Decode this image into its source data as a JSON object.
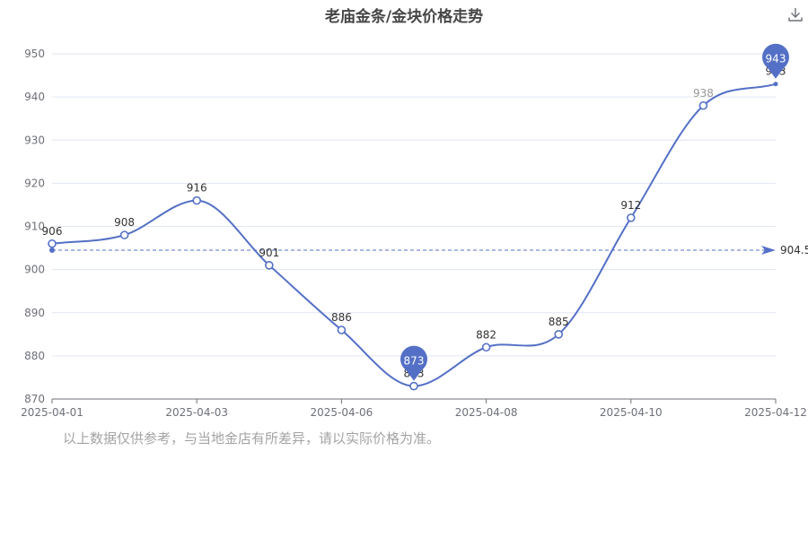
{
  "title": "老庙金条/金块价格走势",
  "download_icon": "download-icon",
  "footnote": "以上数据仅供参考，与当地金店有所差异，请以实际价格为准。",
  "colors": {
    "line": "#5470c6",
    "grid": "#e0e6f1",
    "axis": "#6e7079",
    "label": "#333333",
    "faded_label": "#999999",
    "footnote": "#a3a3a3"
  },
  "chart_data": {
    "type": "line",
    "title": "老庙金条/金块价格走势",
    "x_tick_labels": [
      "2025-04-01",
      "2025-04-03",
      "2025-04-06",
      "2025-04-08",
      "2025-04-10",
      "2025-04-12"
    ],
    "x_tick_indices": [
      0,
      2,
      4,
      6,
      8,
      10
    ],
    "y_ticks": [
      870,
      880,
      890,
      900,
      910,
      920,
      930,
      940,
      950
    ],
    "ylim": [
      870,
      950
    ],
    "series": [
      {
        "values": [
          906,
          908,
          916,
          901,
          886,
          873,
          882,
          885,
          912,
          938,
          943
        ],
        "labels": [
          "906",
          "908",
          "916",
          "901",
          "886",
          "873",
          "882",
          "885",
          "912",
          "938",
          "943"
        ]
      }
    ],
    "mark_points": [
      {
        "type": "min",
        "index": 5,
        "value": 873,
        "label": "873"
      },
      {
        "type": "max",
        "index": 10,
        "value": 943,
        "label": "943"
      }
    ],
    "mark_line": {
      "type": "average",
      "value": 904.5,
      "label": "904.5"
    },
    "grid": true
  }
}
